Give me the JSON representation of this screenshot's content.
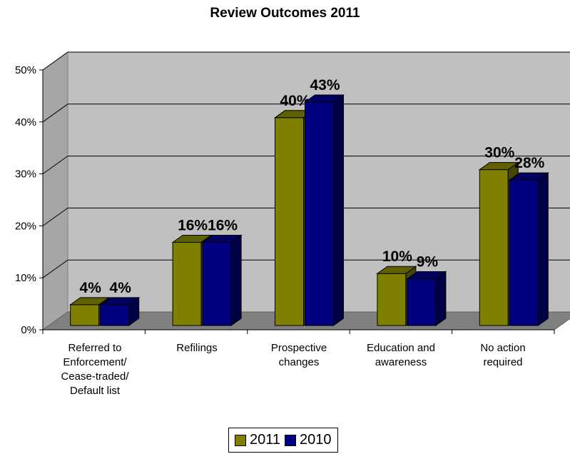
{
  "chart_data": {
    "type": "bar",
    "title": "Review Outcomes 2011",
    "categories": [
      [
        "Referred to",
        "Enforcement/",
        "Cease-traded/",
        "Default list"
      ],
      [
        "Refilings"
      ],
      [
        "Prospective",
        "changes"
      ],
      [
        "Education and",
        "awareness"
      ],
      [
        "No action",
        "required"
      ]
    ],
    "series": [
      {
        "name": "2011",
        "color": "#808000",
        "values": [
          4,
          16,
          40,
          10,
          30
        ],
        "labels": [
          "4%",
          "16%",
          "40%",
          "10%",
          "30%"
        ]
      },
      {
        "name": "2010",
        "color": "#000080",
        "values": [
          4,
          16,
          43,
          9,
          28
        ],
        "labels": [
          "4%",
          "16%",
          "43%",
          "9%",
          "28%"
        ]
      }
    ],
    "yticks": [
      "0%",
      "10%",
      "20%",
      "30%",
      "40%",
      "50%"
    ],
    "ylim": [
      0,
      50
    ],
    "grid": true,
    "legend_position": "bottom",
    "style": "3d-clustered-column"
  }
}
